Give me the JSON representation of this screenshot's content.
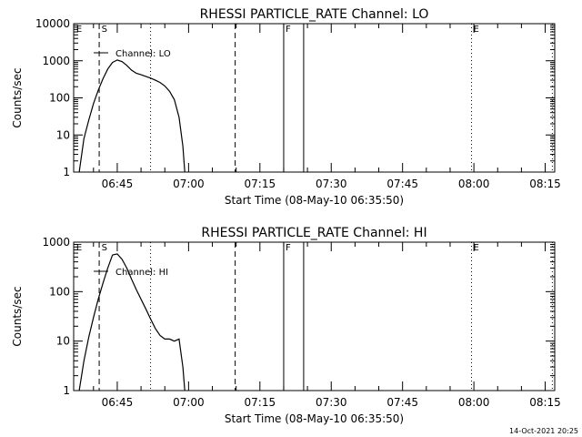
{
  "chart_data": [
    {
      "type": "line",
      "title": "RHESSI PARTICLE_RATE Channel: LO",
      "xlabel": "Start Time (08-May-10 06:35:50)",
      "ylabel": "Counts/sec",
      "y_scale": "log",
      "ylim": [
        1,
        10000
      ],
      "y_ticks": [
        "1",
        "10",
        "100",
        "1000",
        "10000"
      ],
      "x_tick_labels": [
        "06:45",
        "07:00",
        "07:15",
        "07:30",
        "07:45",
        "08:00",
        "08:15"
      ],
      "x_ticks_min": [
        405,
        420,
        435,
        450,
        465,
        480,
        495
      ],
      "x_range_min": [
        395.83,
        497.0
      ],
      "legend": "Channel: LO",
      "series": [
        {
          "name": "Channel: LO",
          "x_min": [
            397.0,
            398.0,
            399.0,
            400.0,
            401.0,
            402.0,
            403.0,
            404.0,
            405.0,
            406.0,
            407.0,
            408.0,
            409.0,
            410.0,
            411.0,
            412.0,
            413.0,
            414.0,
            415.0,
            416.0,
            417.0,
            418.0,
            418.8,
            419.2
          ],
          "values": [
            1.0,
            8.0,
            25.0,
            70.0,
            160.0,
            330.0,
            600.0,
            900.0,
            1050.0,
            950.0,
            750.0,
            560.0,
            460.0,
            420.0,
            380.0,
            340.0,
            300.0,
            260.0,
            210.0,
            150.0,
            90.0,
            30.0,
            5.0,
            1.0
          ]
        }
      ],
      "markers": {
        "dashed_min": [
          401.2,
          429.8
        ],
        "dotted_min": [
          412.0,
          479.5,
          496.5
        ],
        "solid_min": [
          440.0,
          444.2
        ],
        "labels": [
          {
            "text": "E",
            "at_min": 396.2
          },
          {
            "text": "S",
            "at_min": 401.5
          },
          {
            "text": "F",
            "at_min": 440.2
          },
          {
            "text": "E",
            "at_min": 479.7
          }
        ]
      }
    },
    {
      "type": "line",
      "title": "RHESSI PARTICLE_RATE Channel: HI",
      "xlabel": "Start Time (08-May-10 06:35:50)",
      "ylabel": "Counts/sec",
      "y_scale": "log",
      "ylim": [
        1,
        1000
      ],
      "y_ticks": [
        "1",
        "10",
        "100",
        "1000"
      ],
      "x_tick_labels": [
        "06:45",
        "07:00",
        "07:15",
        "07:30",
        "07:45",
        "08:00",
        "08:15"
      ],
      "x_ticks_min": [
        405,
        420,
        435,
        450,
        465,
        480,
        495
      ],
      "x_range_min": [
        395.83,
        497.0
      ],
      "legend": "Channel: HI",
      "series": [
        {
          "name": "Channel: HI",
          "x_min": [
            397.0,
            398.0,
            399.0,
            400.0,
            401.0,
            402.0,
            403.0,
            404.0,
            405.0,
            406.0,
            407.0,
            408.0,
            409.0,
            410.0,
            411.0,
            412.0,
            413.0,
            414.0,
            415.0,
            416.0,
            417.0,
            418.0,
            418.8,
            419.2
          ],
          "values": [
            1.0,
            4.0,
            12.0,
            30.0,
            70.0,
            150.0,
            300.0,
            550.0,
            580.0,
            450.0,
            300.0,
            180.0,
            110.0,
            70.0,
            45.0,
            28.0,
            18.0,
            13.0,
            11.0,
            11.0,
            10.0,
            11.0,
            3.0,
            1.0
          ]
        }
      ],
      "markers": {
        "dashed_min": [
          401.2,
          429.8
        ],
        "dotted_min": [
          412.0,
          479.5,
          496.5
        ],
        "solid_min": [
          440.0,
          444.2
        ],
        "labels": [
          {
            "text": "E",
            "at_min": 396.2
          },
          {
            "text": "S",
            "at_min": 401.5
          },
          {
            "text": "F",
            "at_min": 440.2
          },
          {
            "text": "E",
            "at_min": 479.7
          }
        ]
      }
    }
  ],
  "timestamp": "14-Oct-2021 20:25"
}
